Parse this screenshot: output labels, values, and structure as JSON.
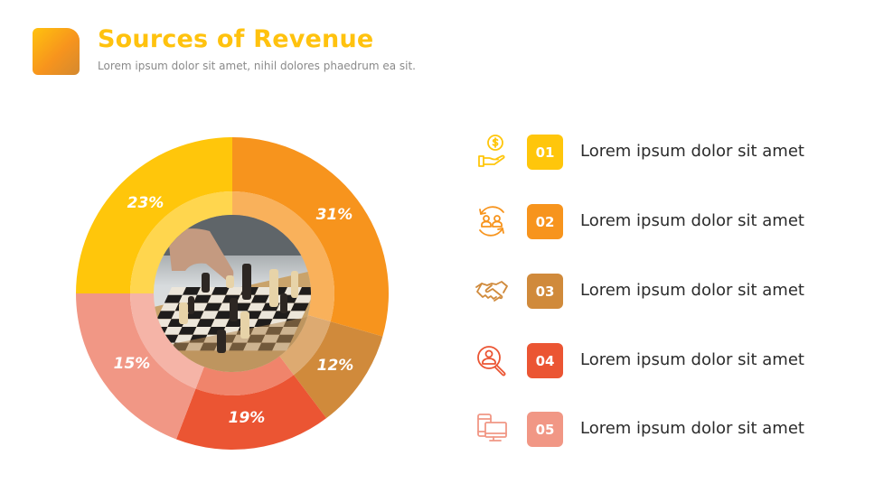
{
  "header": {
    "title": "Sources of Revenue",
    "subtitle": "Lorem ipsum dolor sit amet, nihil dolores phaedrum ea sit."
  },
  "colors": {
    "title": "#FFC20E",
    "segment_1": "#F7941D",
    "segment_2": "#D08A3B",
    "segment_3": "#EB5533",
    "segment_4": "#F19785",
    "segment_5": "#FFC60B"
  },
  "chart_data": {
    "type": "pie",
    "variant": "donut with center photo",
    "title": "Sources of Revenue",
    "start_angle": "12 o'clock, clockwise",
    "categories": [
      "31%",
      "12%",
      "19%",
      "15%",
      "23%"
    ],
    "values": [
      31,
      12,
      19,
      15,
      23
    ],
    "colors": [
      "#F7941D",
      "#D08A3B",
      "#EB5533",
      "#F19785",
      "#FFC60B"
    ],
    "labels": [
      "31%",
      "12%",
      "19%",
      "15%",
      "23%"
    ],
    "center_image": "chess-game-photo"
  },
  "items": [
    {
      "number": "01",
      "label": "Lorem ipsum dolor sit amet",
      "icon": "money-hand-icon",
      "color": "#FFC60B"
    },
    {
      "number": "02",
      "label": "Lorem ipsum dolor sit amet",
      "icon": "people-exchange-icon",
      "color": "#F7941D"
    },
    {
      "number": "03",
      "label": "Lorem ipsum dolor sit amet",
      "icon": "handshake-icon",
      "color": "#D08A3B"
    },
    {
      "number": "04",
      "label": "Lorem ipsum dolor sit amet",
      "icon": "user-search-icon",
      "color": "#EB5533"
    },
    {
      "number": "05",
      "label": "Lorem ipsum dolor sit amet",
      "icon": "devices-icon",
      "color": "#F19785"
    }
  ]
}
